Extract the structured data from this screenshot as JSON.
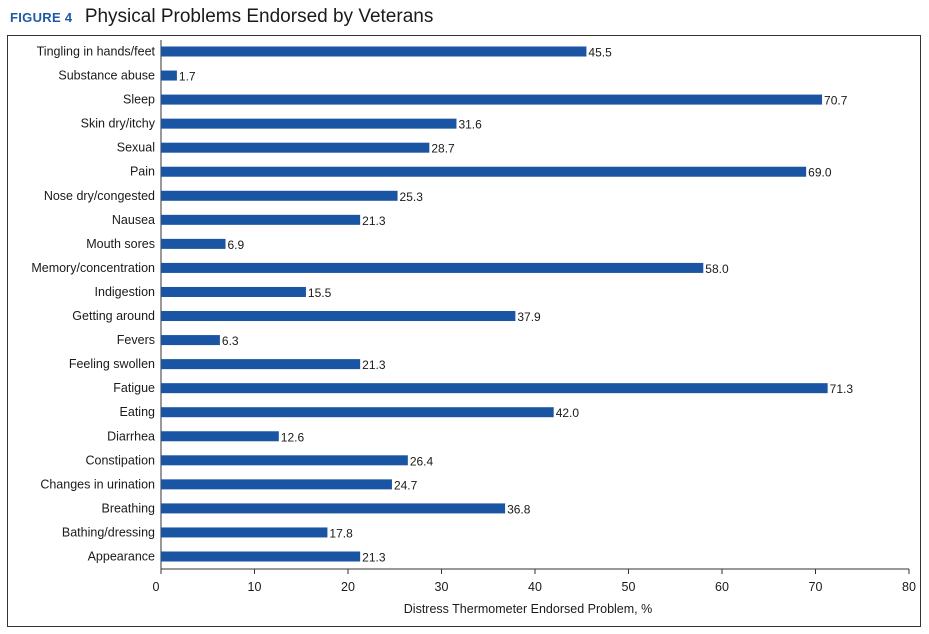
{
  "figure": {
    "label": "FIGURE 4",
    "title": "Physical Problems Endorsed by Veterans"
  },
  "colors": {
    "accent": "#1f5aa6",
    "bar": "#1a55a3",
    "axis": "#333333"
  },
  "chart_data": {
    "type": "bar",
    "orientation": "horizontal",
    "categories": [
      "Tingling in hands/feet",
      "Substance abuse",
      "Sleep",
      "Skin dry/itchy",
      "Sexual",
      "Pain",
      "Nose dry/congested",
      "Nausea",
      "Mouth sores",
      "Memory/concentration",
      "Indigestion",
      "Getting around",
      "Fevers",
      "Feeling swollen",
      "Fatigue",
      "Eating",
      "Diarrhea",
      "Constipation",
      "Changes in urination",
      "Breathing",
      "Bathing/dressing",
      "Appearance"
    ],
    "values": [
      45.5,
      1.7,
      70.7,
      31.6,
      28.7,
      69.0,
      25.3,
      21.3,
      6.9,
      58.0,
      15.5,
      37.9,
      6.3,
      21.3,
      71.3,
      42.0,
      12.6,
      26.4,
      24.7,
      36.8,
      17.8,
      21.3
    ],
    "value_labels": [
      "45.5",
      "1.7",
      "70.7",
      "31.6",
      "28.7",
      "69.0",
      "25.3",
      "21.3",
      "6.9",
      "58.0",
      "15.5",
      "37.9",
      "6.3",
      "21.3",
      "71.3",
      "42.0",
      "12.6",
      "26.4",
      "24.7",
      "36.8",
      "17.8",
      "21.3"
    ],
    "title": "Physical Problems Endorsed by Veterans",
    "xlabel": "Distress Thermometer Endorsed Problem, %",
    "ylabel": "",
    "xlim": [
      0,
      80
    ],
    "xticks": [
      0,
      10,
      20,
      30,
      40,
      50,
      60,
      70,
      80
    ],
    "xtick_labels": [
      "0",
      "10",
      "20",
      "30",
      "40",
      "50",
      "60",
      "70",
      "80"
    ],
    "grid": false,
    "legend": "none"
  }
}
